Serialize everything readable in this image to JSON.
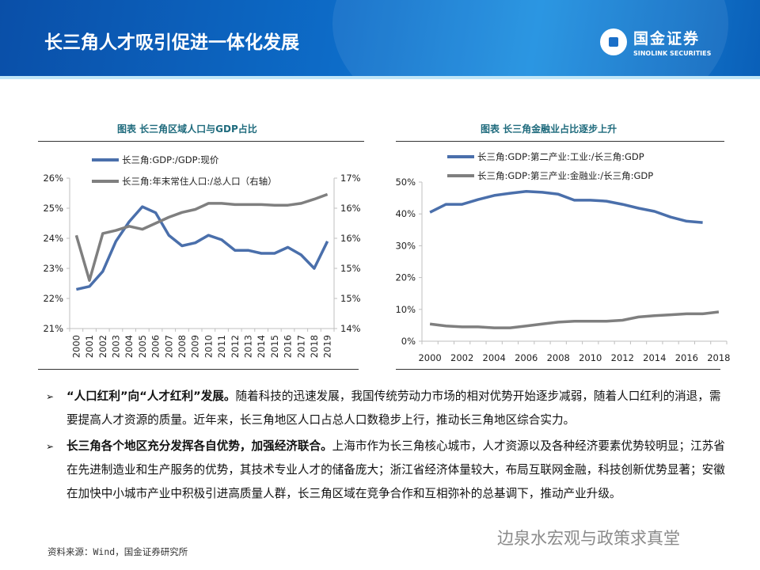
{
  "header": {
    "title": "长三角人才吸引促进一体化发展",
    "logo_cn": "国金证券",
    "logo_en": "SINOLINK SECURITIES"
  },
  "colors": {
    "blue": "#4a6fab",
    "gray": "#7f7f7f",
    "title_teal": "#1f6b7d",
    "header_blue": "#0d6cc8"
  },
  "chart_data": [
    {
      "type": "line",
      "title": "图表  长三角区域人口与GDP占比",
      "categories": [
        "2000",
        "2001",
        "2002",
        "2003",
        "2004",
        "2005",
        "2006",
        "2007",
        "2008",
        "2009",
        "2010",
        "2011",
        "2012",
        "2013",
        "2014",
        "2015",
        "2016",
        "2017",
        "2018",
        "2019"
      ],
      "y_ticks": [
        "21%",
        "22%",
        "23%",
        "24%",
        "25%",
        "26%"
      ],
      "ylim": [
        21,
        26
      ],
      "y2_ticks": [
        "14%",
        "15%",
        "15%",
        "16%",
        "16%",
        "17%"
      ],
      "y2lim": [
        14,
        16.5
      ],
      "legend": "top",
      "grid": false,
      "series": [
        {
          "name": "长三角:GDP:/GDP:现价",
          "axis": "left",
          "color": "#4a6fab",
          "values": [
            22.3,
            22.4,
            22.9,
            23.9,
            24.55,
            25.05,
            24.85,
            24.1,
            23.75,
            23.85,
            24.1,
            23.95,
            23.6,
            23.6,
            23.5,
            23.5,
            23.7,
            23.45,
            23.0,
            23.9
          ]
        },
        {
          "name": "长三角:年末常住人口:/总人口（右轴）",
          "axis": "right",
          "color": "#7f7f7f",
          "values": [
            15.55,
            14.8,
            15.58,
            15.63,
            15.7,
            15.65,
            15.75,
            15.85,
            15.93,
            15.98,
            16.08,
            16.08,
            16.06,
            16.06,
            16.06,
            16.05,
            16.05,
            16.08,
            16.15,
            16.23
          ]
        }
      ]
    },
    {
      "type": "line",
      "title": "图表  长三角金融业占比逐步上升",
      "categories": [
        "2000",
        "2001",
        "2002",
        "2003",
        "2004",
        "2005",
        "2006",
        "2007",
        "2008",
        "2009",
        "2010",
        "2011",
        "2012",
        "2013",
        "2014",
        "2015",
        "2016",
        "2017",
        "2018"
      ],
      "x_tick_labels": [
        "2000",
        "2002",
        "2004",
        "2006",
        "2008",
        "2010",
        "2012",
        "2014",
        "2016",
        "2018"
      ],
      "y_ticks": [
        "0%",
        "10%",
        "20%",
        "30%",
        "40%",
        "50%"
      ],
      "ylim": [
        0,
        50
      ],
      "legend": "top",
      "grid": false,
      "series": [
        {
          "name": "长三角:GDP:第二产业:工业:/长三角:GDP",
          "color": "#4a6fab",
          "values": [
            40.5,
            43,
            43,
            44.5,
            45.8,
            46.5,
            47.1,
            46.8,
            46.2,
            44.3,
            44.3,
            44,
            43,
            41.8,
            40.8,
            39,
            37.7,
            37.3,
            null
          ]
        },
        {
          "name": "长三角:GDP:第三产业:金融业:/长三角:GDP",
          "color": "#7f7f7f",
          "values": [
            5.4,
            4.8,
            4.5,
            4.5,
            4.2,
            4.2,
            4.8,
            5.4,
            6,
            6.3,
            6.3,
            6.3,
            6.6,
            7.6,
            8,
            8.3,
            8.6,
            8.6,
            9.2
          ]
        }
      ]
    }
  ],
  "paragraphs": [
    {
      "bold": "“人口红利”向“人才红利”发展。",
      "text": "随着科技的迅速发展，我国传统劳动力市场的相对优势开始逐步减弱，随着人口红利的消退，需要提高人才资源的质量。近年来，长三角地区人口占总人口数稳步上行，推动长三角地区综合实力。"
    },
    {
      "bold": "长三角各个地区充分发挥各自优势，加强经济联合。",
      "text": "上海市作为长三角核心城市，人才资源以及各种经济要素优势较明显；江苏省在先进制造业和生产服务的优势，其技术专业人才的储备庞大；浙江省经济体量较大，布局互联网金融，科技创新优势显著；安徽在加快中小城市产业中积极引进高质量人群，长三角区域在竞争合作和互相弥补的总基调下，推动产业升级。"
    }
  ],
  "bullet_icon": "arrowhead-bullet",
  "source": "资料来源：Wind，国金证券研究所",
  "watermark": "边泉水宏观与政策求真堂"
}
